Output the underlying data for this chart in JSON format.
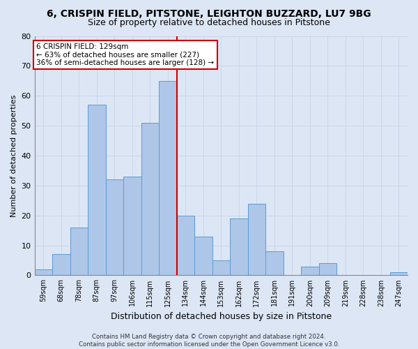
{
  "title1": "6, CRISPIN FIELD, PITSTONE, LEIGHTON BUZZARD, LU7 9BG",
  "title2": "Size of property relative to detached houses in Pitstone",
  "xlabel": "Distribution of detached houses by size in Pitstone",
  "ylabel": "Number of detached properties",
  "footer1": "Contains HM Land Registry data © Crown copyright and database right 2024.",
  "footer2": "Contains public sector information licensed under the Open Government Licence v3.0.",
  "bar_labels": [
    "59sqm",
    "68sqm",
    "78sqm",
    "87sqm",
    "97sqm",
    "106sqm",
    "115sqm",
    "125sqm",
    "134sqm",
    "144sqm",
    "153sqm",
    "162sqm",
    "172sqm",
    "181sqm",
    "191sqm",
    "200sqm",
    "209sqm",
    "219sqm",
    "228sqm",
    "238sqm",
    "247sqm"
  ],
  "bar_values": [
    2,
    7,
    16,
    57,
    32,
    33,
    51,
    65,
    20,
    13,
    5,
    19,
    24,
    8,
    0,
    3,
    4,
    0,
    0,
    0,
    1
  ],
  "bar_color": "#aec6e8",
  "bar_edgecolor": "#5b9bd5",
  "vline_x": 7.5,
  "vline_color": "#cc0000",
  "annotation_title": "6 CRISPIN FIELD: 129sqm",
  "annotation_line1": "← 63% of detached houses are smaller (227)",
  "annotation_line2": "36% of semi-detached houses are larger (128) →",
  "annotation_box_facecolor": "#ffffff",
  "annotation_box_edgecolor": "#cc0000",
  "ylim": [
    0,
    80
  ],
  "yticks": [
    0,
    10,
    20,
    30,
    40,
    50,
    60,
    70,
    80
  ],
  "grid_color": "#c8d4e8",
  "background_color": "#dce6f5",
  "title1_fontsize": 10,
  "title2_fontsize": 9
}
